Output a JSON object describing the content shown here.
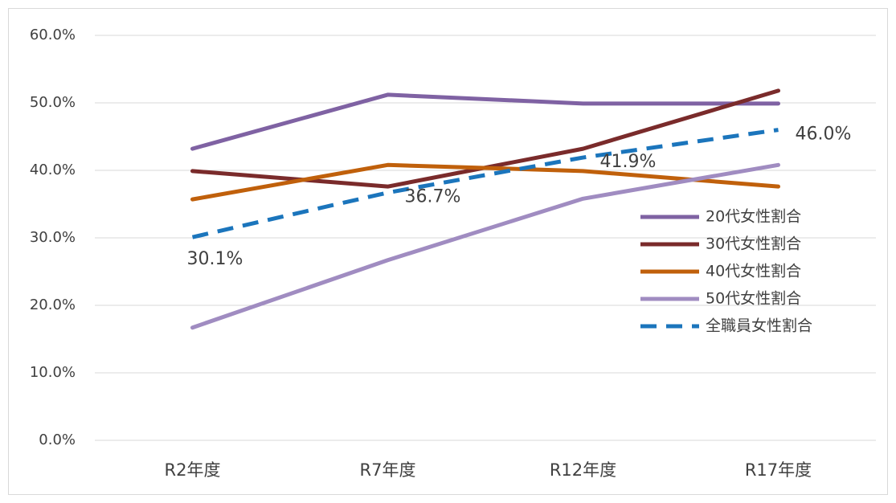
{
  "chart_data": {
    "type": "line",
    "categories": [
      "R2年度",
      "R7年度",
      "R12年度",
      "R17年度"
    ],
    "series": [
      {
        "name": "20代女性割合",
        "color": "#7f62a3",
        "values": [
          43.2,
          51.2,
          49.9,
          49.9
        ]
      },
      {
        "name": "30代女性割合",
        "color": "#7a2b2b",
        "values": [
          39.9,
          37.6,
          43.2,
          51.8
        ]
      },
      {
        "name": "40代女性割合",
        "color": "#c0600b",
        "values": [
          35.7,
          40.8,
          39.9,
          37.6
        ]
      },
      {
        "name": "50代女性割合",
        "color": "#a08cc1",
        "values": [
          16.7,
          26.7,
          35.8,
          40.8
        ]
      },
      {
        "name": "全職員女性割合",
        "color": "#1b75bc",
        "dashed": true,
        "values": [
          30.1,
          36.7,
          41.9,
          46.0
        ],
        "value_labels": [
          "30.1%",
          "36.7%",
          "41.9%",
          "46.0%"
        ]
      }
    ],
    "ylim": [
      0,
      60
    ],
    "yticks": [
      {
        "value": 0,
        "label": "0.0%"
      },
      {
        "value": 10,
        "label": "10.0%"
      },
      {
        "value": 20,
        "label": "20.0%"
      },
      {
        "value": 30,
        "label": "30.0%"
      },
      {
        "value": 40,
        "label": "40.0%"
      },
      {
        "value": 50,
        "label": "50.0%"
      },
      {
        "value": 60,
        "label": "60.0%"
      }
    ],
    "grid": true,
    "legend": "right"
  }
}
